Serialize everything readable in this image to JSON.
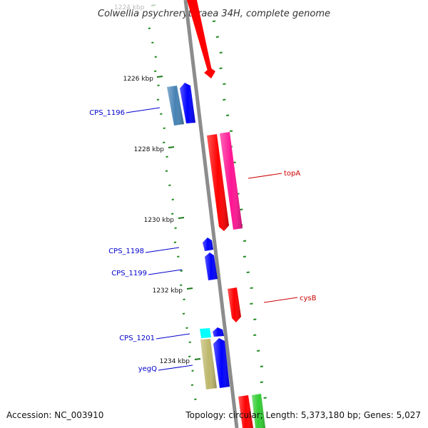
{
  "title": "Colwellia psychrerythraea 34H, complete genome",
  "footer": {
    "accession": "Accession: NC_003910",
    "summary": "Topology: circular; Length: 5,373,180 bp; Genes: 5,027"
  },
  "ticks": [
    {
      "label": "1224 kbp",
      "faded": true
    },
    {
      "label": "1226 kbp"
    },
    {
      "label": "1228 kbp"
    },
    {
      "label": "1230 kbp"
    },
    {
      "label": "1232 kbp"
    },
    {
      "label": "1234 kbp"
    }
  ],
  "gene_labels": [
    {
      "text": "CPS_1196",
      "color": "#0000cc"
    },
    {
      "text": "topA",
      "color": "#cc0000"
    },
    {
      "text": "CPS_1198",
      "color": "#0000cc"
    },
    {
      "text": "CPS_1199",
      "color": "#0000cc"
    },
    {
      "text": "cysB",
      "color": "#cc0000"
    },
    {
      "text": "CPS_1201",
      "color": "#0000cc"
    },
    {
      "text": "yegQ",
      "color": "#0000cc"
    }
  ],
  "colors": {
    "backbone": "#8c8c8c",
    "tick": "#1a7a1a",
    "gc_dots": "#228b22",
    "red_gene": "#ff0000",
    "pink_gene": "#ff1493",
    "blue_gene": "#0000ff",
    "steelblue_gene": "#4682b4",
    "cyan_gene": "#00ffff",
    "khaki_gene": "#bdb76b",
    "green_gene": "#32cd32"
  }
}
